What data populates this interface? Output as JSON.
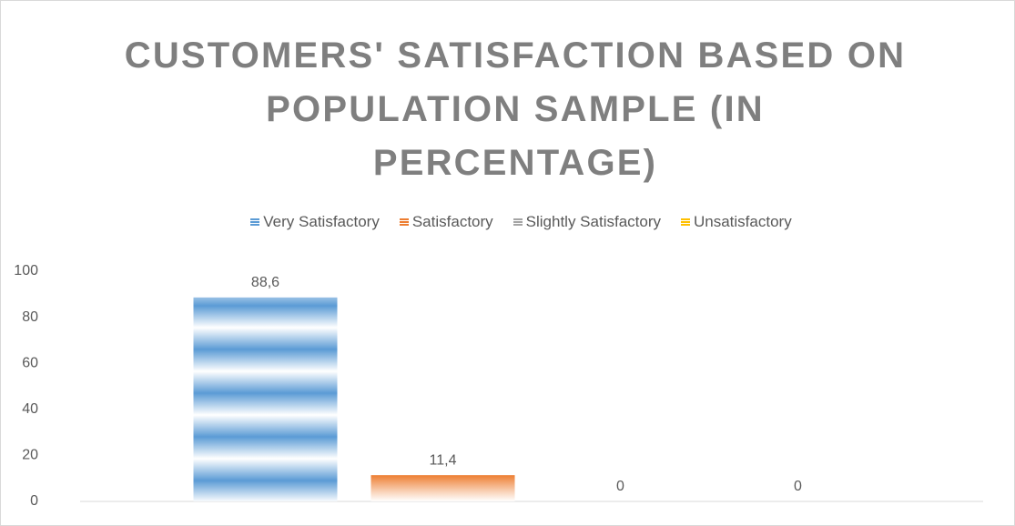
{
  "chart_data": {
    "type": "bar",
    "title": "CUSTOMERS' SATISFACTION BASED ON POPULATION SAMPLE (IN PERCENTAGE)",
    "categories": [
      null
    ],
    "series": [
      {
        "name": "Very Satisfactory",
        "color": "#5b9bd5",
        "values": [
          88.6
        ],
        "value_labels": [
          "88,6"
        ]
      },
      {
        "name": "Satisfactory",
        "color": "#ed7d31",
        "values": [
          11.4
        ],
        "value_labels": [
          "11,4"
        ]
      },
      {
        "name": "Slightly Satisfactory",
        "color": "#a5a5a5",
        "values": [
          0
        ],
        "value_labels": [
          "0"
        ]
      },
      {
        "name": "Unsatisfactory",
        "color": "#ffc000",
        "values": [
          0
        ],
        "value_labels": [
          "0"
        ]
      }
    ],
    "ylim": [
      0,
      100
    ],
    "yticks": [
      0,
      20,
      40,
      60,
      80,
      100
    ],
    "grid": false,
    "legend": "top"
  }
}
